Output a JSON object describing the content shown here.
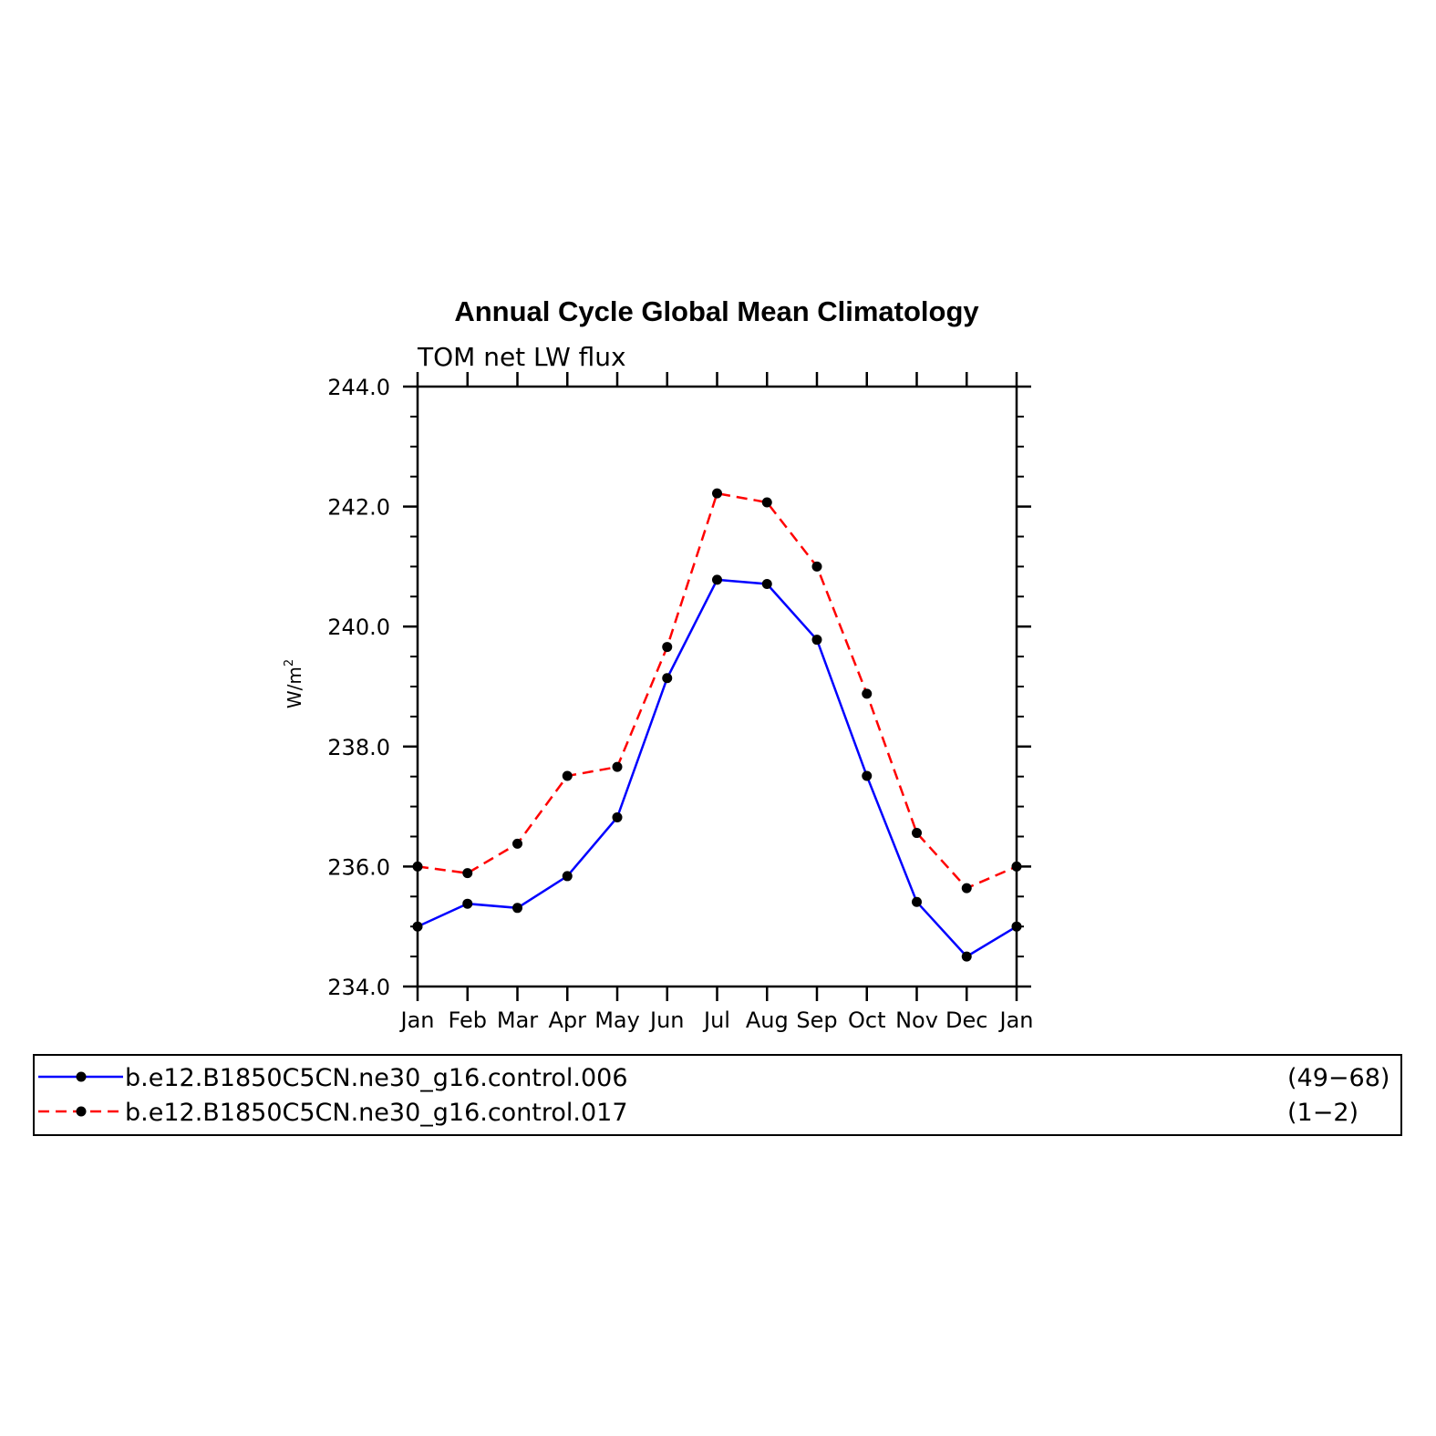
{
  "chart_data": {
    "type": "line",
    "title": "Annual Cycle Global Mean Climatology",
    "subtitle": "TOM net LW flux",
    "ylabel": "W/m",
    "ylabel_superscript": "2",
    "categories": [
      "Jan",
      "Feb",
      "Mar",
      "Apr",
      "May",
      "Jun",
      "Jul",
      "Aug",
      "Sep",
      "Oct",
      "Nov",
      "Dec",
      "Jan"
    ],
    "ylim": [
      234.0,
      244.0
    ],
    "yticks": [
      "234.0",
      "236.0",
      "238.0",
      "240.0",
      "242.0",
      "244.0"
    ],
    "series": [
      {
        "name": "b.e12.B1850C5CN.ne30_g16.control.006",
        "years": "(49−68)",
        "color": "#0000ff",
        "dash": "solid",
        "values": [
          235.0,
          235.38,
          235.31,
          235.84,
          236.82,
          239.14,
          240.78,
          240.71,
          239.78,
          237.51,
          235.41,
          234.5,
          235.0
        ]
      },
      {
        "name": "b.e12.B1850C5CN.ne30_g16.control.017",
        "years": "(1−2)",
        "color": "#ff0000",
        "dash": "dashed",
        "values": [
          236.0,
          235.89,
          236.38,
          237.51,
          237.66,
          239.66,
          242.22,
          242.07,
          241.0,
          238.88,
          236.56,
          235.64,
          236.0
        ]
      }
    ],
    "marker_color": "#000000",
    "grid": false,
    "legend_position": "bottom"
  }
}
